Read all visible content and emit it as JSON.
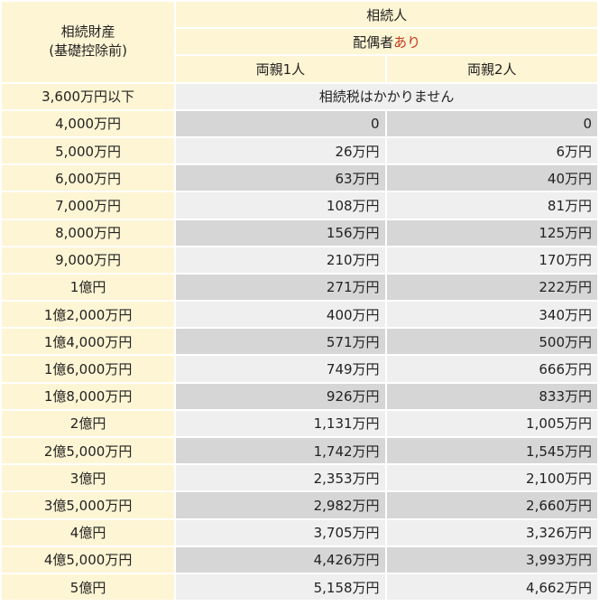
{
  "header": {
    "corner_line1": "相続財産",
    "corner_line2": "(基礎控除前)",
    "heirs": "相続人",
    "spouse_prefix": "配偶者",
    "spouse_accent": "あり",
    "col_one_parent": "両親1人",
    "col_two_parents": "両親2人"
  },
  "accent_color": "#c4391d",
  "first_row": {
    "label": "3,600万円以下",
    "note": "相続税はかかりません"
  },
  "rows": [
    {
      "label": "4,000万円",
      "one": "0",
      "two": "0"
    },
    {
      "label": "5,000万円",
      "one": "26万円",
      "two": "6万円"
    },
    {
      "label": "6,000万円",
      "one": "63万円",
      "two": "40万円"
    },
    {
      "label": "7,000万円",
      "one": "108万円",
      "two": "81万円"
    },
    {
      "label": "8,000万円",
      "one": "156万円",
      "two": "125万円"
    },
    {
      "label": "9,000万円",
      "one": "210万円",
      "two": "170万円"
    },
    {
      "label": "1億円",
      "one": "271万円",
      "two": "222万円"
    },
    {
      "label": "1億2,000万円",
      "one": "400万円",
      "two": "340万円"
    },
    {
      "label": "1億4,000万円",
      "one": "571万円",
      "two": "500万円"
    },
    {
      "label": "1億6,000万円",
      "one": "749万円",
      "two": "666万円"
    },
    {
      "label": "1億8,000万円",
      "one": "926万円",
      "two": "833万円"
    },
    {
      "label": "2億円",
      "one": "1,131万円",
      "two": "1,005万円"
    },
    {
      "label": "2億5,000万円",
      "one": "1,742万円",
      "two": "1,545万円"
    },
    {
      "label": "3億円",
      "one": "2,353万円",
      "two": "2,100万円"
    },
    {
      "label": "3億5,000万円",
      "one": "2,982万円",
      "two": "2,660万円"
    },
    {
      "label": "4億円",
      "one": "3,705万円",
      "two": "3,326万円"
    },
    {
      "label": "4億5,000万円",
      "one": "4,426万円",
      "two": "3,993万円"
    },
    {
      "label": "5億円",
      "one": "5,158万円",
      "two": "4,662万円"
    }
  ]
}
